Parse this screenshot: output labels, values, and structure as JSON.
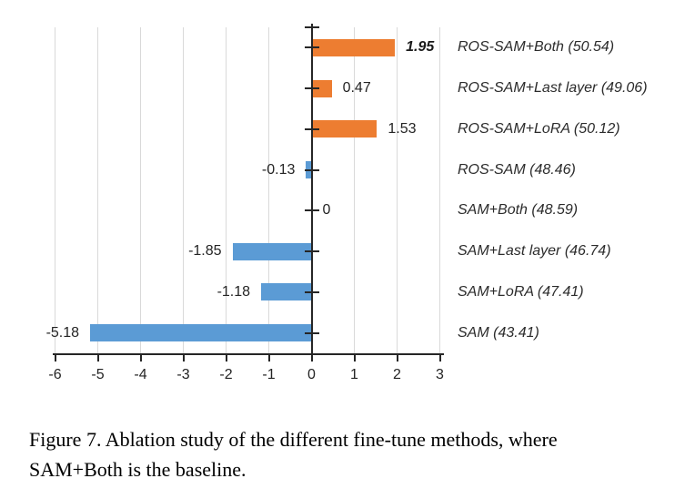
{
  "figure": {
    "caption_lines": [
      "Figure 7. Ablation study of the different fine-tune methods, where",
      "SAM+Both is the baseline."
    ]
  },
  "chart_data": {
    "type": "bar",
    "orientation": "horizontal",
    "title": "",
    "xlabel": "",
    "ylabel": "",
    "xlim": [
      -6,
      3
    ],
    "x_ticks": [
      -6,
      -5,
      -4,
      -3,
      -2,
      -1,
      0,
      1,
      2,
      3
    ],
    "x_tick_labels": [
      "-6",
      "-5",
      "-4",
      "-3",
      "-2",
      "-1",
      "0",
      "1",
      "2",
      "3"
    ],
    "grid": true,
    "points": [
      {
        "category": "ROS-SAM+Both (50.54)",
        "value": 1.95,
        "value_label": "1.95",
        "color": "#ED7D31",
        "bold": true
      },
      {
        "category": "ROS-SAM+Last layer (49.06)",
        "value": 0.47,
        "value_label": "0.47",
        "color": "#ED7D31",
        "bold": false
      },
      {
        "category": "ROS-SAM+LoRA (50.12)",
        "value": 1.53,
        "value_label": "1.53",
        "color": "#ED7D31",
        "bold": false
      },
      {
        "category": "ROS-SAM (48.46)",
        "value": -0.13,
        "value_label": "-0.13",
        "color": "#5B9BD5",
        "bold": false
      },
      {
        "category": "SAM+Both (48.59)",
        "value": 0,
        "value_label": "0",
        "color": null,
        "bold": false
      },
      {
        "category": "SAM+Last layer (46.74)",
        "value": -1.85,
        "value_label": "-1.85",
        "color": "#5B9BD5",
        "bold": false
      },
      {
        "category": "SAM+LoRA (47.41)",
        "value": -1.18,
        "value_label": "-1.18",
        "color": "#5B9BD5",
        "bold": false
      },
      {
        "category": "SAM (43.41)",
        "value": -5.18,
        "value_label": "-5.18",
        "color": "#5B9BD5",
        "bold": false
      }
    ],
    "colors": {
      "positive_bar": "#ED7D31",
      "negative_bar": "#5B9BD5",
      "gridline": "#D9D9D9",
      "axis": "#262626",
      "text": "#242424"
    }
  }
}
